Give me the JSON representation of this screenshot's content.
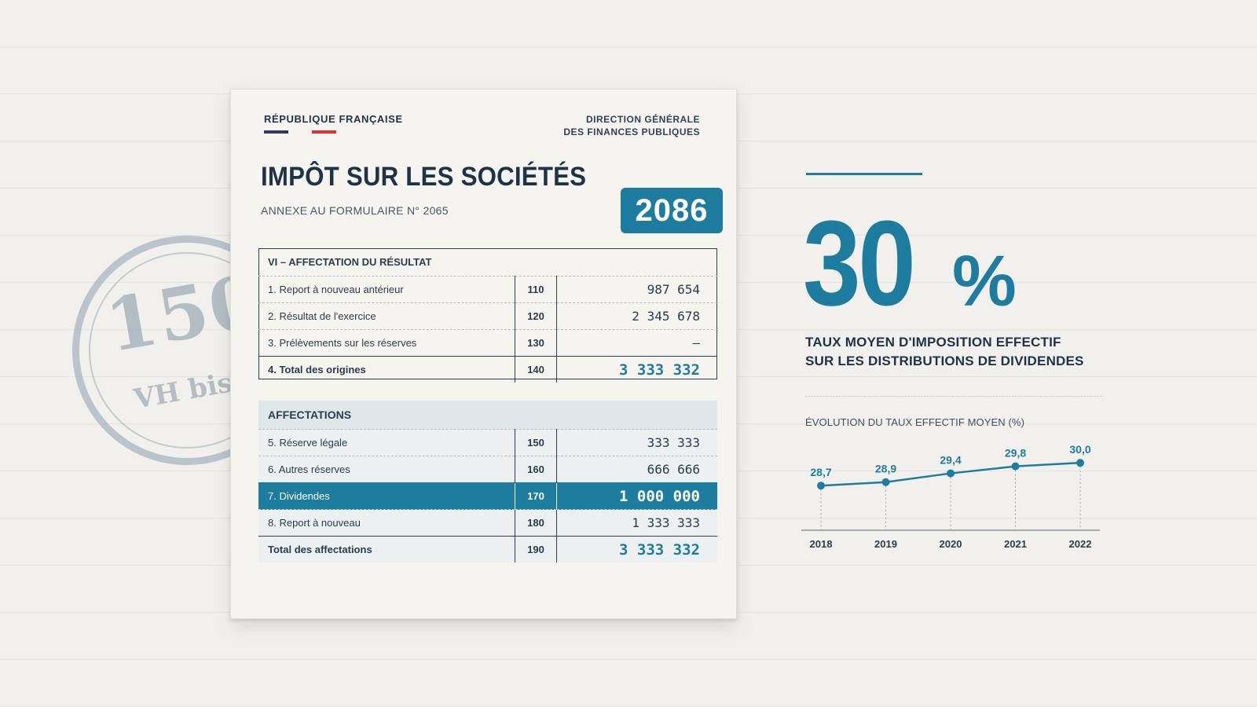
{
  "stamp": {
    "number": "150",
    "sub": "VH bis"
  },
  "document": {
    "republic": "RÉPUBLIQUE FRANÇAISE",
    "directorate_line1": "DIRECTION GÉNÉRALE",
    "directorate_line2": "DES FINANCES PUBLIQUES",
    "title": "IMPÔT SUR LES SOCIÉTÉS",
    "subtitle": "ANNEXE AU FORMULAIRE N° 2065",
    "form_number": "2086",
    "flag_colors": [
      "#2b3a5c",
      "#f6f4ef",
      "#d8313a"
    ],
    "section1": {
      "header": "VI – AFFECTATION DU RÉSULTAT",
      "rows": [
        {
          "label": "1. Report à nouveau antérieur",
          "code": "110",
          "value": "987 654"
        },
        {
          "label": "2. Résultat de l'exercice",
          "code": "120",
          "value": "2 345 678"
        },
        {
          "label": "3. Prélèvements sur les réserves",
          "code": "130",
          "value": "–"
        }
      ],
      "total": {
        "label": "4. Total des origines",
        "code": "140",
        "value": "3 333 332"
      }
    },
    "section2": {
      "header": "AFFECTATIONS",
      "rows": [
        {
          "label": "5. Réserve légale",
          "code": "150",
          "value": "333 333"
        },
        {
          "label": "6. Autres réserves",
          "code": "160",
          "value": "666 666"
        },
        {
          "label": "7. Dividendes",
          "code": "170",
          "value": "1 000 000"
        },
        {
          "label": "8. Report à nouveau",
          "code": "180",
          "value": "1 333 333"
        }
      ],
      "total": {
        "label": "Total des affectations",
        "code": "190",
        "value": "3 333 332"
      }
    }
  },
  "stat": {
    "value": "30",
    "unit": "%",
    "caption_line1": "TAUX MOYEN D'IMPOSITION EFFECTIF",
    "caption_line2": "SUR LES DISTRIBUTIONS DE DIVIDENDES"
  },
  "accent_color": "#1e7d9f",
  "chart_data": {
    "type": "line",
    "title": "ÉVOLUTION DU TAUX EFFECTIF MOYEN (%)",
    "xlabel": "",
    "ylabel": "",
    "categories": [
      "2018",
      "2019",
      "2020",
      "2021",
      "2022"
    ],
    "series": [
      {
        "values": [
          28.7,
          28.9,
          29.4,
          29.8,
          30.0
        ],
        "labels": [
          "28,7",
          "28,9",
          "29,4",
          "29,8",
          "30,0"
        ]
      }
    ],
    "ylim": [
      27.5,
      30.5
    ],
    "grid": false,
    "color": "#1e7d9f"
  }
}
